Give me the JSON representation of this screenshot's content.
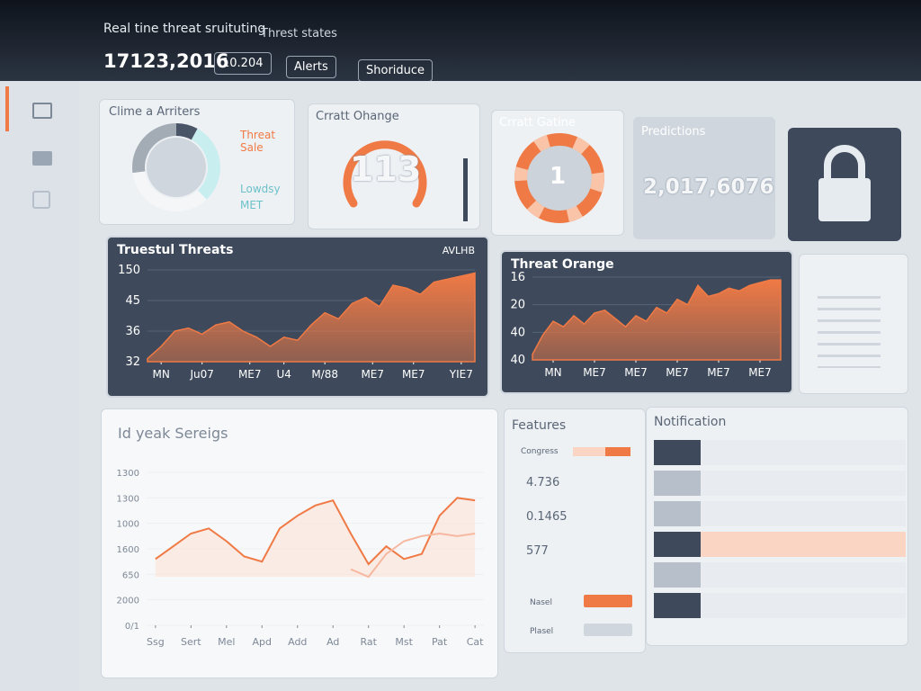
{
  "header": {
    "title": "Real tine threat sruituting",
    "dropdown": "Threst states",
    "counter": "17123,2016",
    "select": "10.204",
    "buttons": [
      "Alerts",
      "Shoriduce"
    ]
  },
  "cards": {
    "donut": {
      "title": "Clime a Arriters",
      "legend": [
        "Threat Sale",
        "Lowdsy",
        "MET"
      ],
      "values": [
        8,
        30,
        35,
        27
      ],
      "colors": [
        "#4a5568",
        "#c9eef0",
        "#f4f6f8",
        "#a3abb5"
      ]
    },
    "gauge": {
      "title": "Crratt Ohange",
      "value": "113"
    },
    "ring": {
      "title": "Crratt Gatine",
      "value": "1"
    },
    "stat": {
      "title": "Predictions",
      "value": "2,017,6076"
    }
  },
  "chart_data": [
    {
      "type": "area",
      "title": "Truestul Threats",
      "badge": "AVLHB",
      "color": "#f07a45",
      "x": [
        0,
        1,
        2,
        3,
        4,
        5,
        6,
        7,
        8,
        9,
        10,
        11,
        12,
        13,
        14,
        15,
        16,
        17,
        18,
        19,
        20,
        21,
        22,
        23,
        24
      ],
      "values": [
        0.1,
        0.5,
        1.0,
        1.1,
        0.9,
        1.2,
        1.3,
        1.0,
        0.8,
        0.5,
        0.8,
        0.7,
        1.2,
        1.6,
        1.4,
        1.9,
        2.1,
        1.8,
        2.5,
        2.4,
        2.2,
        2.6,
        2.7,
        2.8,
        2.9
      ],
      "xlim": [
        0,
        24
      ],
      "ylim": [
        0,
        3
      ],
      "xticks": [
        {
          "value": 1,
          "label": "MN"
        },
        {
          "value": 4,
          "label": "Ju07"
        },
        {
          "value": 7.5,
          "label": "ME7"
        },
        {
          "value": 10,
          "label": "U4"
        },
        {
          "value": 13,
          "label": "M/88"
        },
        {
          "value": 16.5,
          "label": "ME7"
        },
        {
          "value": 19.5,
          "label": "ME7"
        },
        {
          "value": 23,
          "label": "YIE7"
        }
      ],
      "yticks": [
        {
          "value": 3,
          "label": "150"
        },
        {
          "value": 2,
          "label": "45"
        },
        {
          "value": 1,
          "label": "36"
        },
        {
          "value": 0,
          "label": "32"
        }
      ]
    },
    {
      "type": "area",
      "title": "Threat Orange",
      "color": "#f07a45",
      "x": [
        0,
        1,
        2,
        3,
        4,
        5,
        6,
        7,
        8,
        9,
        10,
        11,
        12,
        13,
        14,
        15,
        16,
        17,
        18,
        19,
        20,
        21,
        22,
        23,
        24
      ],
      "values": [
        0.2,
        0.9,
        1.4,
        1.2,
        1.6,
        1.3,
        1.7,
        1.8,
        1.5,
        1.2,
        1.6,
        1.4,
        1.9,
        1.7,
        2.2,
        2.0,
        2.7,
        2.3,
        2.4,
        2.6,
        2.5,
        2.7,
        2.8,
        2.9,
        2.9
      ],
      "xlim": [
        0,
        24
      ],
      "ylim": [
        0,
        3
      ],
      "xticks": [
        {
          "value": 2,
          "label": "MN"
        },
        {
          "value": 6,
          "label": "ME7"
        },
        {
          "value": 10,
          "label": "ME7"
        },
        {
          "value": 14,
          "label": "ME7"
        },
        {
          "value": 18,
          "label": "ME7"
        },
        {
          "value": 22,
          "label": "ME7"
        }
      ],
      "yticks": [
        {
          "value": 3,
          "label": "16"
        },
        {
          "value": 2,
          "label": "20"
        },
        {
          "value": 1,
          "label": "40"
        },
        {
          "value": 0,
          "label": "40"
        }
      ]
    },
    {
      "type": "line",
      "title": "Id yeak Sereigs",
      "x": [
        0,
        1,
        2,
        3,
        4,
        5,
        6,
        7,
        8,
        9,
        10,
        11,
        12,
        13,
        14,
        15,
        16,
        17,
        18
      ],
      "series": [
        {
          "color": "#f07a45",
          "values": [
            2.6,
            3.1,
            3.6,
            3.8,
            3.3,
            2.7,
            2.5,
            3.8,
            4.3,
            4.7,
            4.9,
            3.6,
            2.4,
            3.1,
            2.6,
            2.8,
            4.3,
            5.0,
            4.9
          ]
        },
        {
          "color": "#f6b8a0",
          "values": [
            null,
            null,
            null,
            null,
            null,
            null,
            null,
            null,
            null,
            null,
            null,
            2.2,
            1.9,
            2.8,
            3.3,
            3.5,
            3.6,
            3.5,
            3.6
          ]
        }
      ],
      "xlim": [
        -0.5,
        18.5
      ],
      "ylim": [
        0,
        6
      ],
      "xticks": [
        {
          "value": 0,
          "label": "Ssg"
        },
        {
          "value": 2,
          "label": "Sert"
        },
        {
          "value": 4,
          "label": "Mel"
        },
        {
          "value": 6,
          "label": "Apd"
        },
        {
          "value": 8,
          "label": "Add"
        },
        {
          "value": 10,
          "label": "Ad"
        },
        {
          "value": 12,
          "label": "Rat"
        },
        {
          "value": 14,
          "label": "Mst"
        },
        {
          "value": 16,
          "label": "Pat"
        },
        {
          "value": 18,
          "label": "Cat"
        }
      ],
      "yticks": [
        {
          "value": 6,
          "label": "1300"
        },
        {
          "value": 5,
          "label": "1300"
        },
        {
          "value": 4,
          "label": "1000"
        },
        {
          "value": 3,
          "label": "1600"
        },
        {
          "value": 2,
          "label": "650"
        },
        {
          "value": 1,
          "label": "2000"
        },
        {
          "value": 0,
          "label": "0/1"
        }
      ]
    }
  ],
  "features": {
    "title": "Features",
    "bar_label": "Congress",
    "stats": [
      "4.736",
      "0.1465",
      "577"
    ],
    "toggles": [
      "Nasel",
      "Plasel"
    ]
  },
  "notifications": {
    "title": "Notification"
  }
}
